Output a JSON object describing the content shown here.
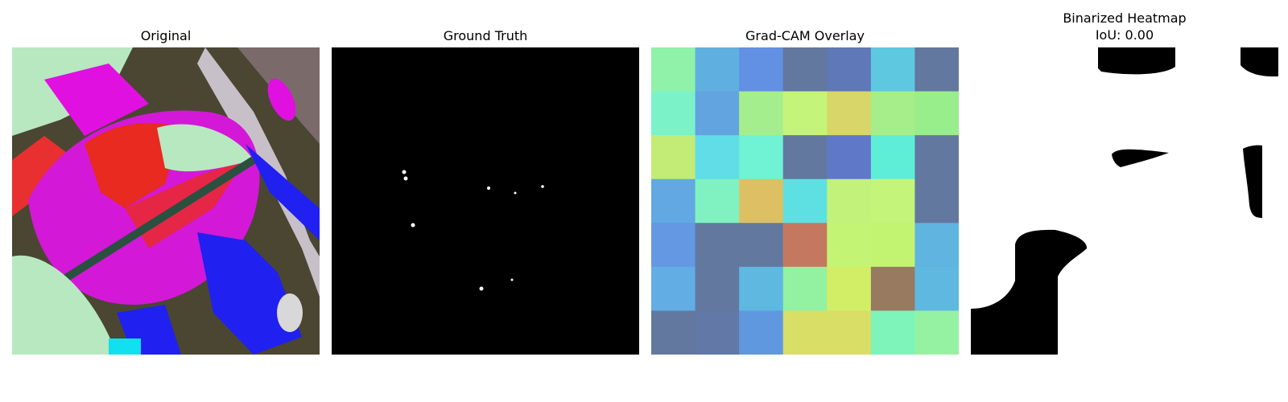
{
  "figure": {
    "panels": [
      {
        "title": "Original"
      },
      {
        "title": "Ground Truth"
      },
      {
        "title": "Grad-CAM Overlay"
      },
      {
        "title": "Binarized Heatmap",
        "subtitle": "IoU: 0.00"
      }
    ]
  },
  "chart_data": {
    "type": "heatmap",
    "rows": 7,
    "cols": 7,
    "cells": [
      [
        "#8ff2a8",
        "#5fb0e0",
        "#6290e2",
        "#62789f",
        "#5f78b8",
        "#5ec8e0",
        "#63789f"
      ],
      [
        "#7cf2c8",
        "#62a4e0",
        "#a5ee8e",
        "#c5f47a",
        "#d8d668",
        "#a5ee8a",
        "#98ee8a"
      ],
      [
        "#c2ec76",
        "#60dde6",
        "#70f2d4",
        "#62789f",
        "#5f78c8",
        "#5eeed8",
        "#63789f"
      ],
      [
        "#62a8e2",
        "#80f2c2",
        "#dec064",
        "#5ee0e2",
        "#c2f27a",
        "#c4f47a",
        "#63789f"
      ],
      [
        "#6498e2",
        "#62789f",
        "#63789f",
        "#c47860",
        "#c4f474",
        "#c2f472",
        "#5fb4e0"
      ],
      [
        "#62aee4",
        "#63789f",
        "#5eb8e0",
        "#92f2a2",
        "#d2ee66",
        "#987a60",
        "#5eb8e0"
      ],
      [
        "#63789f",
        "#6278a6",
        "#6098e0",
        "#d8de66",
        "#d8de66",
        "#7ef4ba",
        "#94f2a2"
      ]
    ],
    "iou": 0.0
  }
}
